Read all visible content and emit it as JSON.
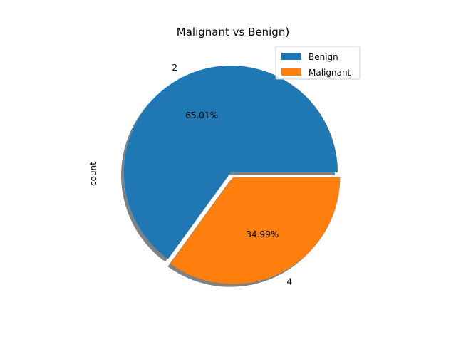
{
  "chart_data": {
    "type": "pie",
    "title": "Malignant vs Benign)",
    "ylabel": "count",
    "labels": [
      "2",
      "4"
    ],
    "values": [
      65.01,
      34.99
    ],
    "autopct": [
      "65.01%",
      "34.99%"
    ],
    "explode": [
      0,
      0.05
    ],
    "colors": [
      "#1f77b4",
      "#ff7f0e"
    ],
    "shadow": true,
    "legend": {
      "entries": [
        "Benign",
        "Malignant"
      ],
      "placement": "upper-right"
    }
  }
}
